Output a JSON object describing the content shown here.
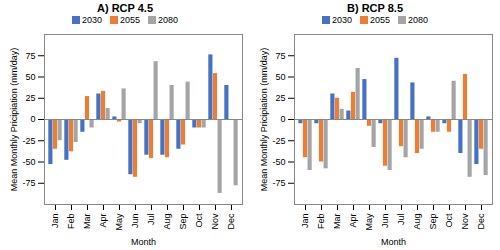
{
  "chart_data": [
    {
      "type": "bar",
      "title": "A) RCP 4.5",
      "x_label": "Month",
      "y_label": "Mean Monthly Pricipiation (mm/day)",
      "categories": [
        "Jan",
        "Feb",
        "Mar",
        "Apr",
        "May",
        "Jun",
        "Jul",
        "Aug",
        "Sep",
        "Oct",
        "Nov",
        "Dec"
      ],
      "series": [
        {
          "name": "2030",
          "color": "#4472c4",
          "values": [
            -53,
            -48,
            -15,
            30,
            3,
            -65,
            -42,
            -42,
            -35,
            -10,
            76,
            40
          ]
        },
        {
          "name": "2055",
          "color": "#ed7d31",
          "values": [
            -35,
            -38,
            27,
            33,
            -3,
            -68,
            -46,
            -45,
            -30,
            -10,
            54,
            0
          ]
        },
        {
          "name": "2080",
          "color": "#a5a5a5",
          "values": [
            -25,
            -27,
            -10,
            13,
            36,
            -5,
            68,
            40,
            44,
            -10,
            -87,
            -78
          ]
        }
      ],
      "ylim": [
        -100,
        100
      ],
      "yticks": [
        -75,
        -50,
        -25,
        0,
        25,
        50,
        75
      ],
      "grid": false
    },
    {
      "type": "bar",
      "title": "B) RCP 8.5",
      "x_label": "Month",
      "y_label": "Mean Monthly Pricipiation (mm/day)",
      "categories": [
        "Jan",
        "Feb",
        "Mar",
        "Apr",
        "May",
        "Jun",
        "Jul",
        "Aug",
        "Sep",
        "Oct",
        "Nov",
        "Dec"
      ],
      "series": [
        {
          "name": "2030",
          "color": "#4472c4",
          "values": [
            -5,
            -5,
            30,
            10,
            47,
            -5,
            72,
            43,
            3,
            -5,
            -40,
            -53
          ]
        },
        {
          "name": "2055",
          "color": "#ed7d31",
          "values": [
            -45,
            -50,
            25,
            32,
            -8,
            -55,
            -32,
            -40,
            -15,
            -15,
            53,
            -35
          ]
        },
        {
          "name": "2080",
          "color": "#a5a5a5",
          "values": [
            -60,
            -58,
            12,
            60,
            -33,
            -60,
            -45,
            -35,
            -15,
            45,
            -68,
            -66
          ]
        }
      ],
      "ylim": [
        -100,
        100
      ],
      "yticks": [
        -75,
        -50,
        -25,
        0,
        25,
        50,
        75
      ],
      "grid": false
    }
  ]
}
